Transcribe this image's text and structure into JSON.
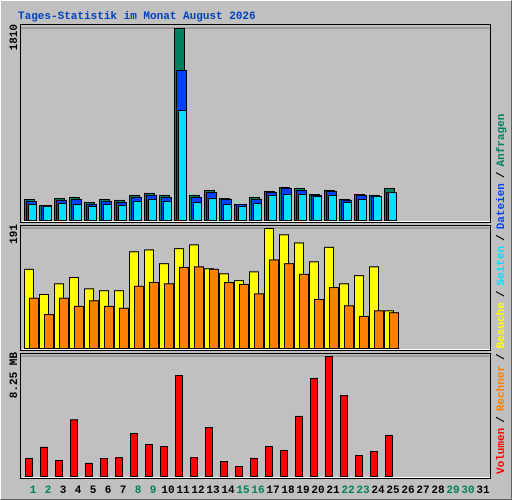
{
  "title": "Tages-Statistik im Monat August 2026",
  "legend_separator": "/",
  "chart_data": [
    {
      "type": "bar",
      "ylim": [
        0,
        1810
      ],
      "yticks": [
        1810
      ],
      "series": [
        {
          "name": "Anfragen",
          "color": "#00805c",
          "values": [
            198,
            141,
            207,
            217,
            170,
            198,
            189,
            236,
            255,
            236,
            1810,
            236,
            283,
            207,
            151,
            217,
            273,
            311,
            302,
            245,
            283,
            198,
            245,
            236,
            302,
            null,
            null,
            null,
            null,
            null,
            null
          ]
        },
        {
          "name": "Dateien",
          "color": "#0040ff",
          "values": [
            179,
            141,
            189,
            198,
            151,
            179,
            170,
            217,
            236,
            217,
            1414,
            217,
            264,
            198,
            151,
            198,
            264,
            302,
            283,
            236,
            273,
            189,
            236,
            226,
            264,
            null,
            null,
            null,
            null,
            null,
            null
          ]
        },
        {
          "name": "Seiten",
          "color": "#00e0ff",
          "values": [
            151,
            132,
            160,
            151,
            132,
            151,
            141,
            179,
            198,
            179,
            1037,
            170,
            207,
            151,
            132,
            160,
            236,
            245,
            245,
            226,
            236,
            170,
            198,
            226,
            264,
            null,
            null,
            null,
            null,
            null,
            null
          ]
        }
      ]
    },
    {
      "type": "bar",
      "ylim": [
        0,
        191
      ],
      "yticks": [
        191
      ],
      "series": [
        {
          "name": "Besuche",
          "color": "#ffff00",
          "values": [
            126,
            86,
            103,
            113,
            95,
            92,
            92,
            154,
            157,
            135,
            159,
            165,
            127,
            119,
            108,
            122,
            191,
            181,
            168,
            138,
            161,
            103,
            116,
            130,
            60,
            null,
            null,
            null,
            null,
            null,
            null
          ]
        },
        {
          "name": "Rechner",
          "color": "#ff8000",
          "values": [
            80,
            54,
            80,
            67,
            76,
            67,
            64,
            99,
            105,
            103,
            129,
            130,
            126,
            105,
            102,
            87,
            141,
            135,
            118,
            78,
            97,
            68,
            51,
            60,
            57,
            null,
            null,
            null,
            null,
            null,
            null
          ]
        }
      ]
    },
    {
      "type": "bar",
      "ylim": [
        0,
        8.25
      ],
      "yticks": [
        {
          "value": 8.25,
          "label": "8.25 MB"
        }
      ],
      "categories": [
        "1",
        "2",
        "3",
        "4",
        "5",
        "6",
        "7",
        "8",
        "9",
        "10",
        "11",
        "12",
        "13",
        "14",
        "15",
        "16",
        "17",
        "18",
        "19",
        "20",
        "21",
        "22",
        "23",
        "24",
        "25",
        "26",
        "27",
        "28",
        "29",
        "30",
        "31"
      ],
      "category_colors": [
        "#00805c",
        "#00805c",
        "#000000",
        "#000000",
        "#000000",
        "#000000",
        "#000000",
        "#00805c",
        "#00805c",
        "#000000",
        "#000000",
        "#000000",
        "#000000",
        "#000000",
        "#00805c",
        "#00805c",
        "#000000",
        "#000000",
        "#000000",
        "#000000",
        "#000000",
        "#00805c",
        "#00805c",
        "#000000",
        "#000000",
        "#000000",
        "#000000",
        "#000000",
        "#00805c",
        "#00805c",
        "#000000"
      ],
      "series": [
        {
          "name": "Volumen",
          "color": "#ff0000",
          "values": [
            1.24,
            2.0,
            1.1,
            3.9,
            0.9,
            1.24,
            1.3,
            2.96,
            2.2,
            2.06,
            6.94,
            1.3,
            3.37,
            1.03,
            0.69,
            1.24,
            2.06,
            1.79,
            4.13,
            6.74,
            8.25,
            5.57,
            1.44,
            1.72,
            2.82,
            null,
            null,
            null,
            null,
            null,
            null
          ]
        }
      ]
    }
  ]
}
